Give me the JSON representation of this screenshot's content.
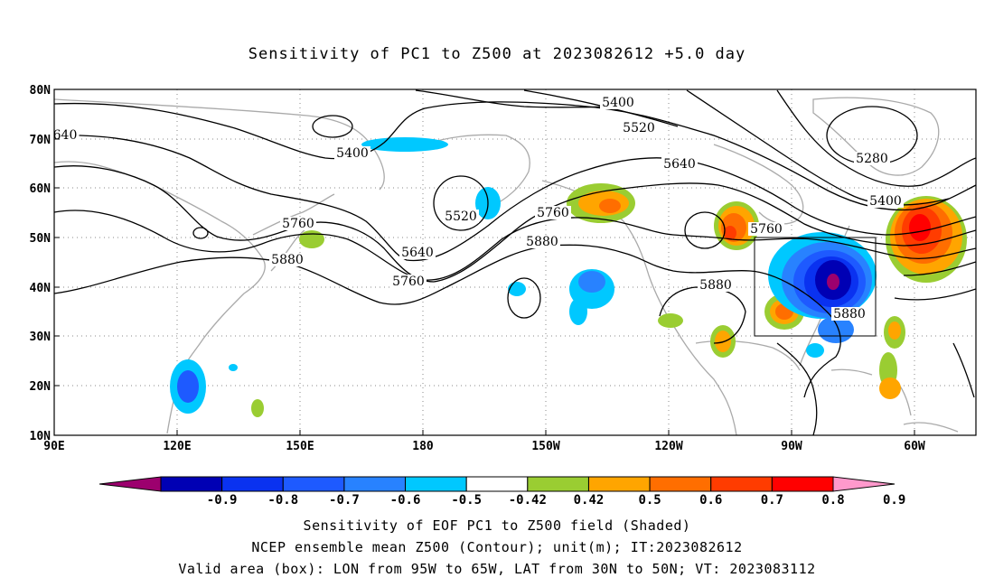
{
  "title": "Sensitivity of PC1 to Z500 at 2023082612 +5.0 day",
  "lat_labels": [
    "80N",
    "70N",
    "60N",
    "50N",
    "40N",
    "30N",
    "20N",
    "10N"
  ],
  "lon_labels": [
    "90E",
    "120E",
    "150E",
    "180",
    "150W",
    "120W",
    "90W",
    "60W"
  ],
  "contour_labels": [
    "5400",
    "5520",
    "5640",
    "5760",
    "5880",
    "5280",
    "5400",
    "5400",
    "5520",
    "5640",
    "5760",
    "5880",
    "5880",
    "5760",
    "5880",
    "5760",
    "640"
  ],
  "colorbar": {
    "labels": [
      "-0.9",
      "-0.8",
      "-0.7",
      "-0.6",
      "-0.5",
      "-0.42",
      "0.42",
      "0.5",
      "0.6",
      "0.7",
      "0.8",
      "0.9"
    ],
    "colors": [
      "#9c006e",
      "#0000b4",
      "#0a32f0",
      "#1e5aff",
      "#2882ff",
      "#00c8ff",
      "#ffffff",
      "#9acd32",
      "#ffa500",
      "#ff6e00",
      "#ff3c00",
      "#ff0000",
      "#ff99cc"
    ]
  },
  "caption": {
    "line1": "Sensitivity of EOF PC1 to Z500 field (Shaded)",
    "line2": "NCEP ensemble mean Z500 (Contour); unit(m); IT:2023082612",
    "line3": "Valid area (box): LON from 95W to 65W, LAT from 30N to 50N; VT: 2023083112"
  },
  "valid_area": {
    "lon_min": -95,
    "lon_max": -65,
    "lat_min": 30,
    "lat_max": 50
  }
}
